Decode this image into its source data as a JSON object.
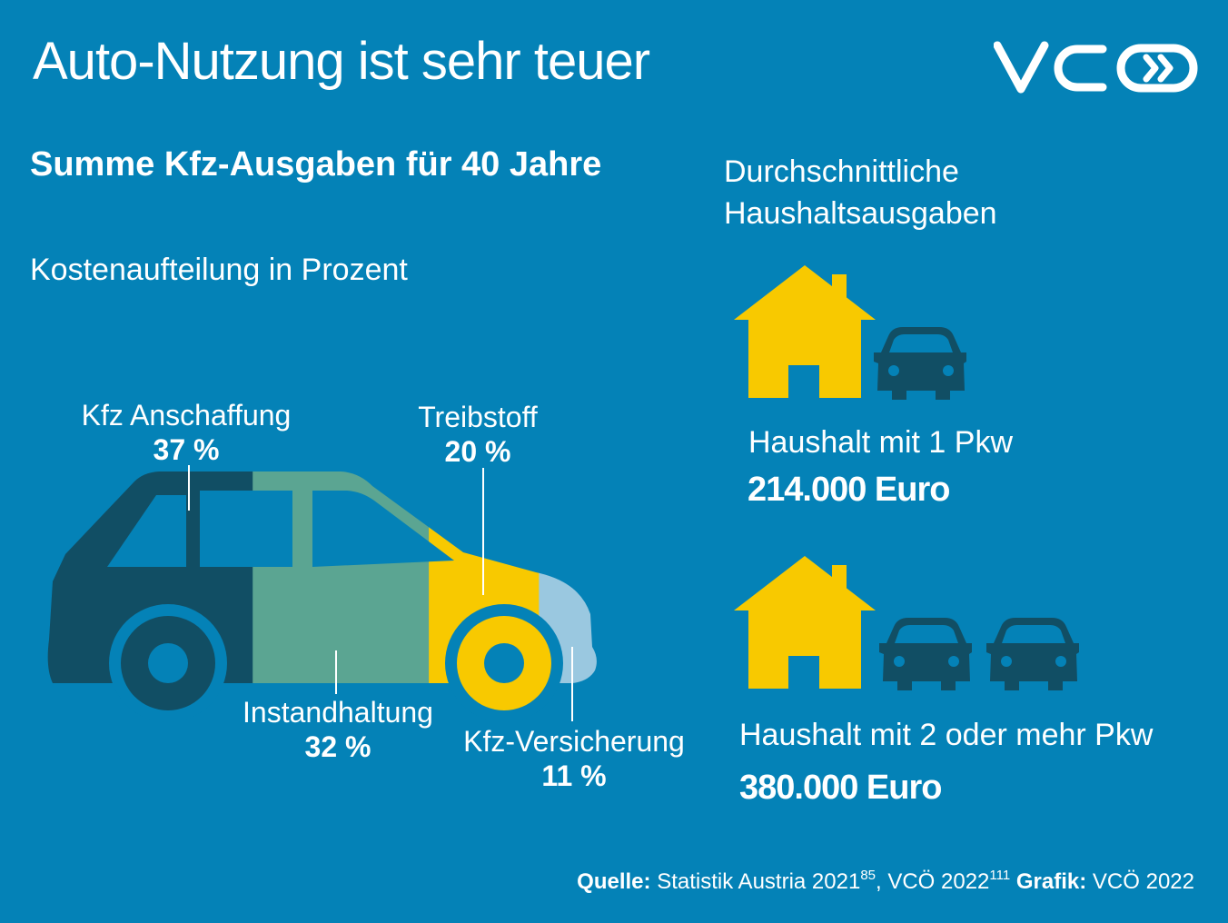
{
  "title": "Auto-Nutzung ist sehr teuer",
  "logo_text": "VCÖ",
  "subtitle": "Summe Kfz-Ausgaben für 40 Jahre",
  "caption": "Kostenaufteilung in Prozent",
  "right_heading": [
    "Durchschnittliche",
    "Haushaltsausgaben"
  ],
  "colors": {
    "background": "#0482b7",
    "anschaffung": "#114e64",
    "instandhaltung": "#5ba592",
    "treibstoff": "#f8c900",
    "versicherung": "#9ac8e0",
    "house": "#f8c900",
    "car_icon": "#114e64"
  },
  "chart_data": {
    "type": "pie",
    "caption": "Kostenaufteilung in Prozent",
    "unit": "%",
    "slices": [
      {
        "label": "Kfz Anschaffung",
        "value": 37,
        "display": "37 %"
      },
      {
        "label": "Instandhaltung",
        "value": 32,
        "display": "32 %"
      },
      {
        "label": "Treibstoff",
        "value": 20,
        "display": "20 %"
      },
      {
        "label": "Kfz-Versicherung",
        "value": 11,
        "display": "11 %"
      }
    ]
  },
  "households": [
    {
      "label": "Haushalt mit 1 Pkw",
      "value": "214.000 Euro",
      "cars": 1,
      "icons": [
        "house-icon",
        "car-icon"
      ]
    },
    {
      "label": "Haushalt mit 2 oder mehr Pkw",
      "value": "380.000 Euro",
      "cars": 2,
      "icons": [
        "house-icon",
        "car-icon",
        "car-icon"
      ]
    }
  ],
  "source": {
    "label1": "Quelle:",
    "text1": "Statistik Austria 2021",
    "sup1": "85",
    "text2": ", VCÖ 2022",
    "sup2": "111",
    "label2": "Grafik:",
    "text3": "VCÖ 2022"
  }
}
